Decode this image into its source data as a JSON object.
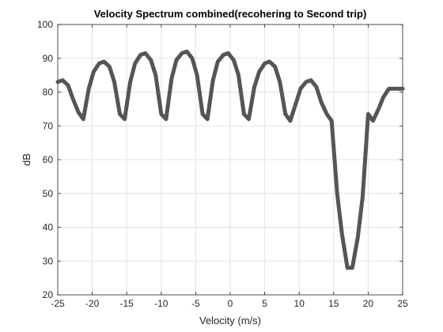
{
  "chart_data": {
    "type": "line",
    "title": "Velocity Spectrum combined(recohering to Second trip)",
    "xlabel": "Velocity (m/s)",
    "ylabel": "dB",
    "xlim": [
      -25,
      25
    ],
    "ylim": [
      20,
      100
    ],
    "xticks": [
      -25,
      -20,
      -15,
      -10,
      -5,
      0,
      5,
      10,
      15,
      20,
      25
    ],
    "yticks": [
      20,
      30,
      40,
      50,
      60,
      70,
      80,
      90,
      100
    ],
    "grid": true,
    "line_color": "#555555",
    "series": [
      {
        "x": [
          -25.0,
          -24.3,
          -23.5,
          -22.8,
          -22.0,
          -21.3,
          -20.5,
          -19.8,
          -19.0,
          -18.3,
          -17.5,
          -16.8,
          -16.0,
          -15.3,
          -14.5,
          -13.8,
          -13.0,
          -12.3,
          -11.5,
          -10.8,
          -10.0,
          -9.3,
          -8.5,
          -7.8,
          -7.0,
          -6.3,
          -5.5,
          -4.8,
          -4.0,
          -3.3,
          -2.5,
          -1.8,
          -1.0,
          -0.3,
          0.5,
          1.2,
          2.0,
          2.7,
          3.5,
          4.2,
          5.0,
          5.7,
          6.5,
          7.2,
          8.0,
          8.7,
          9.5,
          10.2,
          11.0,
          11.7,
          12.5,
          13.2,
          14.0,
          14.7,
          15.5,
          16.2,
          17.0,
          17.7,
          18.5,
          19.2,
          20.0,
          20.7,
          21.5,
          22.2,
          23.0,
          23.7,
          24.5,
          25.0
        ],
        "y": [
          83.0,
          83.5,
          82.0,
          78.0,
          74.0,
          72.0,
          81.0,
          86.0,
          88.5,
          89.0,
          87.5,
          83.0,
          73.5,
          72.0,
          83.0,
          88.5,
          91.0,
          91.5,
          89.5,
          85.0,
          73.5,
          72.0,
          84.0,
          89.5,
          91.5,
          92.0,
          90.0,
          85.0,
          73.5,
          72.0,
          83.5,
          89.0,
          91.0,
          91.5,
          89.5,
          85.0,
          73.5,
          72.0,
          81.5,
          86.0,
          88.5,
          89.0,
          87.5,
          83.0,
          73.5,
          71.5,
          76.5,
          81.0,
          83.0,
          83.5,
          81.5,
          77.0,
          73.5,
          71.5,
          50.0,
          38.0,
          28.0,
          28.0,
          37.0,
          49.0,
          73.5,
          71.5,
          75.0,
          78.5,
          81.0,
          81.0,
          81.0,
          81.0
        ]
      }
    ]
  }
}
